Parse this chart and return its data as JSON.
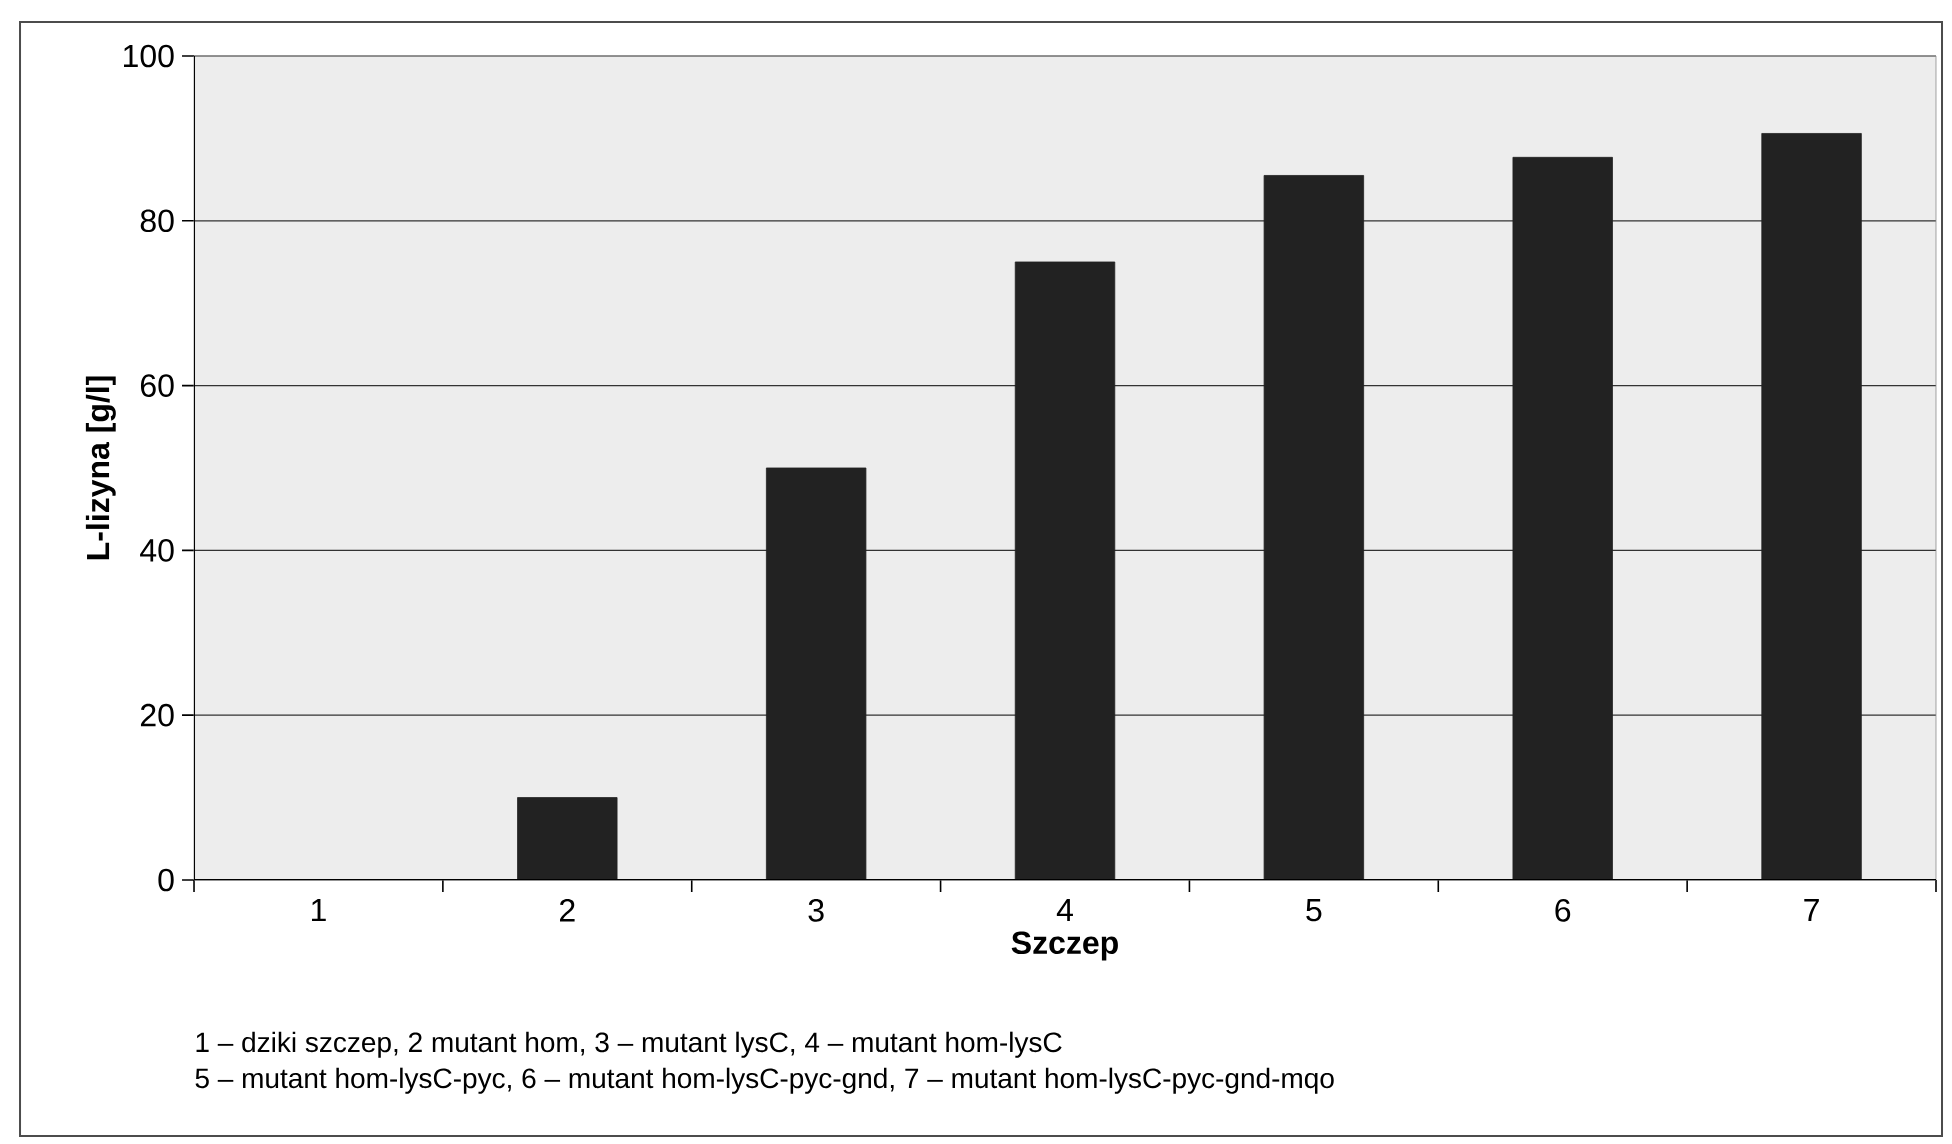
{
  "chart_data": {
    "type": "bar",
    "xlabel": "Szczep",
    "ylabel": "L-lizyna [g/l]",
    "categories": [
      "1",
      "2",
      "3",
      "4",
      "5",
      "6",
      "7"
    ],
    "values": [
      0,
      10,
      50,
      75,
      85.5,
      87.7,
      90.6
    ],
    "color": "#222222",
    "ylim": [
      0,
      100
    ],
    "yticks": [
      0,
      20,
      40,
      60,
      80,
      100
    ],
    "grid": "y",
    "annotations": [
      "1 – dziki szczep, 2  mutant hom, 3 – mutant lysC, 4 – mutant hom-lysC",
      "5 – mutant hom-lysC-pyc, 6 – mutant hom-lysC-pyc-gnd, 7 – mutant hom-lysC-pyc-gnd-mqo"
    ]
  }
}
